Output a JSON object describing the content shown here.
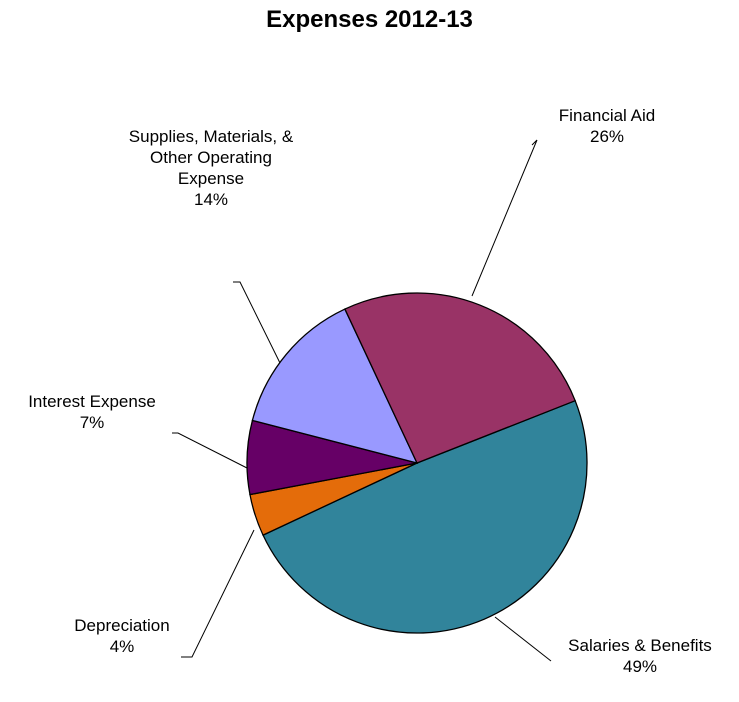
{
  "chart_data": {
    "type": "pie",
    "title": "Expenses 2012-13",
    "slices": [
      {
        "label": [
          "Salaries & Benefits"
        ],
        "value": 49,
        "percent_label": "49%",
        "color": "#31849b"
      },
      {
        "label": [
          "Depreciation"
        ],
        "value": 4,
        "percent_label": "4%",
        "color": "#e46c0a"
      },
      {
        "label": [
          "Interest Expense"
        ],
        "value": 7,
        "percent_label": "7%",
        "color": "#660066"
      },
      {
        "label": [
          "Supplies, Materials, &",
          "Other Operating",
          "Expense"
        ],
        "value": 14,
        "percent_label": "14%",
        "color": "#9999ff"
      },
      {
        "label": [
          "Financial Aid"
        ],
        "value": 26,
        "percent_label": "26%",
        "color": "#993366"
      }
    ],
    "legend": "none"
  }
}
